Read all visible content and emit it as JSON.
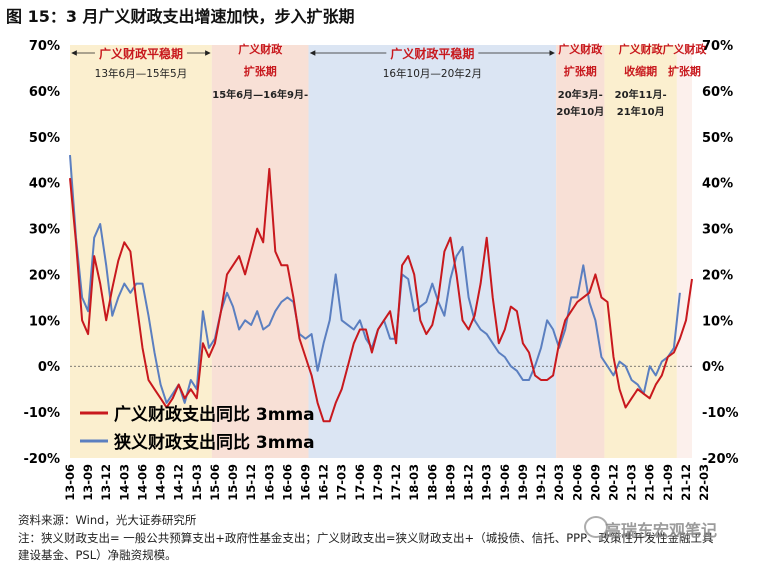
{
  "figure_title": "图 15：3 月广义财政支出增速加快，步入扩张期",
  "chart_data": {
    "type": "line",
    "y_ticks": [
      "70%",
      "60%",
      "50%",
      "40%",
      "30%",
      "20%",
      "10%",
      "0%",
      "-10%",
      "-20%"
    ],
    "ylim": [
      -20,
      70
    ],
    "x_labels": [
      "13-06",
      "13-09",
      "13-12",
      "14-03",
      "14-06",
      "14-09",
      "14-12",
      "15-03",
      "15-06",
      "15-09",
      "15-12",
      "16-03",
      "16-06",
      "16-09",
      "16-12",
      "17-03",
      "17-06",
      "17-09",
      "17-12",
      "18-03",
      "18-06",
      "18-09",
      "18-12",
      "19-03",
      "19-06",
      "19-09",
      "19-12",
      "20-03",
      "20-06",
      "20-09",
      "20-12",
      "21-03",
      "21-06",
      "21-09",
      "21-12",
      "22-03"
    ],
    "periods": [
      {
        "label": "广义财政平稳期",
        "range": "13年6月—15年5月",
        "color": "#fbefcf",
        "start": 0,
        "end": 23
      },
      {
        "label": "广义财政扩张期",
        "range": "15年6月—16年9月",
        "color": "#f8e0d6",
        "start": 24,
        "end": 39
      },
      {
        "label": "广义财政平稳期",
        "range": "16年10月—20年2月",
        "color": "#dbe5f3",
        "start": 40,
        "end": 80
      },
      {
        "label": "广义财政扩张期",
        "range": "20年3月-20年10月",
        "color": "#f8e0d6",
        "start": 81,
        "end": 88
      },
      {
        "label": "广义财政收缩期",
        "range": "20年11月-21年10月",
        "color": "#fbefcf",
        "start": 89,
        "end": 100
      },
      {
        "label": "广义财政扩张期",
        "range": "",
        "color": "#fcf0ec",
        "start": 101,
        "end": 105
      }
    ],
    "series": [
      {
        "name": "广义财政支出同比 3mma",
        "color": "#c8191e",
        "values": [
          41,
          27,
          10,
          7,
          24,
          18,
          10,
          17,
          23,
          27,
          25,
          14,
          4,
          -3,
          -5,
          -7,
          -9,
          -7,
          -4,
          -7,
          -5,
          -7,
          5,
          2,
          5,
          12,
          20,
          22,
          24,
          20,
          25,
          30,
          27,
          43,
          25,
          22,
          22,
          15,
          6,
          2,
          -2,
          -8,
          -12,
          -12,
          -8,
          -5,
          0,
          5,
          8,
          8,
          3,
          8,
          10,
          12,
          5,
          22,
          24,
          20,
          10,
          7,
          9,
          15,
          25,
          28,
          20,
          10,
          8,
          11,
          18,
          28,
          15,
          5,
          8,
          13,
          12,
          5,
          3,
          -2,
          -3,
          -3,
          -2,
          5,
          10,
          12,
          14,
          15,
          16,
          20,
          15,
          14,
          2,
          -5,
          -9,
          -7,
          -5,
          -6,
          -7,
          -4,
          -2,
          2,
          3,
          6,
          10,
          19
        ],
        "values_note": ""
      },
      {
        "name": "狭义财政支出同比 3mma",
        "color": "#5b7fc0",
        "values": [
          46,
          28,
          15,
          12,
          28,
          31,
          22,
          11,
          15,
          18,
          16,
          18,
          18,
          11,
          3,
          -4,
          -8,
          -6,
          -4,
          -8,
          -3,
          -5,
          12,
          4,
          6,
          12,
          16,
          13,
          8,
          10,
          9,
          12,
          8,
          9,
          12,
          14,
          15,
          14,
          7,
          6,
          7,
          -1,
          5,
          10,
          20,
          10,
          9,
          8,
          10,
          6,
          4,
          8,
          10,
          6,
          6,
          20,
          19,
          12,
          13,
          14,
          18,
          14,
          11,
          19,
          24,
          26,
          15,
          10,
          8,
          7,
          5,
          3,
          2,
          0,
          -1,
          -3,
          -3,
          0,
          4,
          10,
          8,
          4,
          8,
          15,
          15,
          22,
          14,
          10,
          2,
          0,
          -2,
          1,
          0,
          -3,
          -4,
          -6,
          0,
          -2,
          1,
          2,
          4,
          16
        ]
      }
    ]
  },
  "legend": {
    "red_label": "广义财政支出同比 3mma",
    "blue_label": "狭义财政支出同比 3mma"
  },
  "footnotes": {
    "source": "资料来源：Wind，光大证券研究所",
    "note_line1": "注：狭义财政支出= 一般公共预算支出+政府性基金支出；广义财政支出=狭义财政支出+（城投债、信托、PPP、政策性开发性金融工具",
    "note_line2": "建设基金、PSL）净融资规模。"
  },
  "watermark": "高瑞东宏观笔记"
}
